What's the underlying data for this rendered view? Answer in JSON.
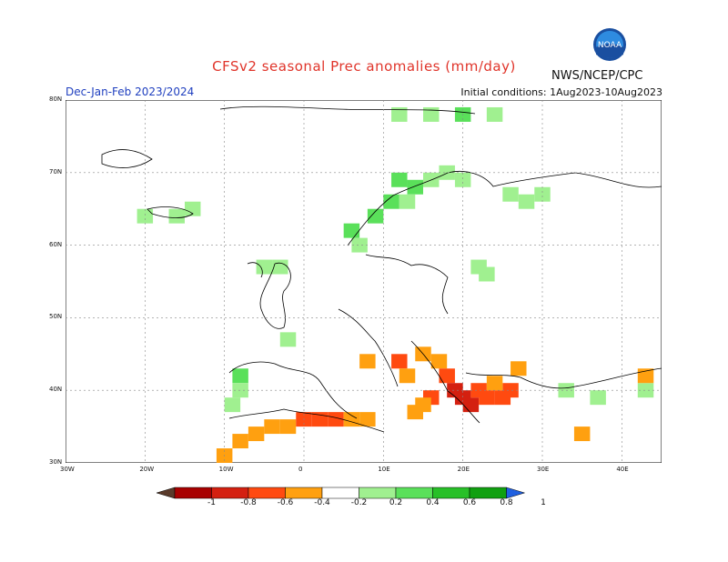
{
  "title": "CFSv2 seasonal Prec anomalies (mm/day)",
  "season": "Dec-Jan-Feb 2023/2024",
  "initial_conditions": "Initial conditions: 1Aug2023-10Aug2023",
  "agency": "NWS/NCEP/CPC",
  "logo_text": "NOAA",
  "lat_ticks": [
    "80N",
    "70N",
    "60N",
    "50N",
    "40N",
    "30N"
  ],
  "lon_ticks": [
    "30W",
    "20W",
    "10W",
    "0",
    "10E",
    "20E",
    "30E",
    "40E"
  ],
  "colorbar": {
    "labels": [
      "-1",
      "-0.8",
      "-0.6",
      "-0.4",
      "-0.2",
      "0.2",
      "0.4",
      "0.6",
      "0.8",
      "1"
    ],
    "colors": [
      "#5a3a2a",
      "#a80000",
      "#d42010",
      "#ff4a10",
      "#ffa010",
      "#ffffff",
      "#a0f090",
      "#5ae05a",
      "#28c028",
      "#10a010",
      "#2060e0"
    ]
  },
  "map_bounds": {
    "lon_min": -30,
    "lon_max": 45,
    "lat_min": 30,
    "lat_max": 80
  },
  "anomaly_cells": [
    {
      "lon": 12,
      "lat": 78,
      "value": 0.3
    },
    {
      "lon": 16,
      "lat": 78,
      "value": 0.3
    },
    {
      "lon": 20,
      "lat": 78,
      "value": 0.4
    },
    {
      "lon": 24,
      "lat": 78,
      "value": 0.3
    },
    {
      "lon": 12,
      "lat": 69,
      "value": 0.4
    },
    {
      "lon": 14,
      "lat": 68,
      "value": 0.4
    },
    {
      "lon": 16,
      "lat": 69,
      "value": 0.3
    },
    {
      "lon": 18,
      "lat": 70,
      "value": 0.3
    },
    {
      "lon": 20,
      "lat": 69,
      "value": 0.3
    },
    {
      "lon": 11,
      "lat": 66,
      "value": 0.4
    },
    {
      "lon": 13,
      "lat": 66,
      "value": 0.3
    },
    {
      "lon": 9,
      "lat": 64,
      "value": 0.4
    },
    {
      "lon": 6,
      "lat": 62,
      "value": 0.4
    },
    {
      "lon": 7,
      "lat": 60,
      "value": 0.3
    },
    {
      "lon": 26,
      "lat": 67,
      "value": 0.3
    },
    {
      "lon": 28,
      "lat": 66,
      "value": 0.3
    },
    {
      "lon": 30,
      "lat": 67,
      "value": 0.3
    },
    {
      "lon": 22,
      "lat": 57,
      "value": 0.3
    },
    {
      "lon": 23,
      "lat": 56,
      "value": 0.3
    },
    {
      "lon": -20,
      "lat": 64,
      "value": 0.3
    },
    {
      "lon": -16,
      "lat": 64,
      "value": 0.3
    },
    {
      "lon": -14,
      "lat": 65,
      "value": 0.3
    },
    {
      "lon": -5,
      "lat": 57,
      "value": 0.3
    },
    {
      "lon": -3,
      "lat": 57,
      "value": 0.3
    },
    {
      "lon": -2,
      "lat": 47,
      "value": 0.3
    },
    {
      "lon": -8,
      "lat": 42,
      "value": 0.4
    },
    {
      "lon": -8,
      "lat": 40,
      "value": 0.3
    },
    {
      "lon": -9,
      "lat": 38,
      "value": 0.3
    },
    {
      "lon": 33,
      "lat": 40,
      "value": 0.3
    },
    {
      "lon": 37,
      "lat": 39,
      "value": 0.3
    },
    {
      "lon": 43,
      "lat": 40,
      "value": 0.3
    },
    {
      "lon": 8,
      "lat": 44,
      "value": -0.3
    },
    {
      "lon": 12,
      "lat": 44,
      "value": -0.4
    },
    {
      "lon": 13,
      "lat": 42,
      "value": -0.3
    },
    {
      "lon": 15,
      "lat": 45,
      "value": -0.3
    },
    {
      "lon": 17,
      "lat": 44,
      "value": -0.3
    },
    {
      "lon": 18,
      "lat": 42,
      "value": -0.5
    },
    {
      "lon": 19,
      "lat": 40,
      "value": -0.6
    },
    {
      "lon": 20,
      "lat": 39,
      "value": -0.7
    },
    {
      "lon": 21,
      "lat": 38,
      "value": -0.6
    },
    {
      "lon": 22,
      "lat": 40,
      "value": -0.5
    },
    {
      "lon": 23,
      "lat": 39,
      "value": -0.4
    },
    {
      "lon": 25,
      "lat": 39,
      "value": -0.5
    },
    {
      "lon": 26,
      "lat": 40,
      "value": -0.4
    },
    {
      "lon": 27,
      "lat": 43,
      "value": -0.3
    },
    {
      "lon": 24,
      "lat": 41,
      "value": -0.3
    },
    {
      "lon": 16,
      "lat": 39,
      "value": -0.5
    },
    {
      "lon": 15,
      "lat": 38,
      "value": -0.3
    },
    {
      "lon": 14,
      "lat": 37,
      "value": -0.3
    },
    {
      "lon": 43,
      "lat": 42,
      "value": -0.3
    },
    {
      "lon": 35,
      "lat": 34,
      "value": -0.3
    },
    {
      "lon": -10,
      "lat": 31,
      "value": -0.3
    },
    {
      "lon": -8,
      "lat": 33,
      "value": -0.3
    },
    {
      "lon": -6,
      "lat": 34,
      "value": -0.3
    },
    {
      "lon": -4,
      "lat": 35,
      "value": -0.3
    },
    {
      "lon": -2,
      "lat": 35,
      "value": -0.3
    },
    {
      "lon": 0,
      "lat": 36,
      "value": -0.4
    },
    {
      "lon": 2,
      "lat": 36,
      "value": -0.5
    },
    {
      "lon": 4,
      "lat": 36,
      "value": -0.4
    },
    {
      "lon": 6,
      "lat": 36,
      "value": -0.3
    },
    {
      "lon": 8,
      "lat": 36,
      "value": -0.3
    }
  ]
}
